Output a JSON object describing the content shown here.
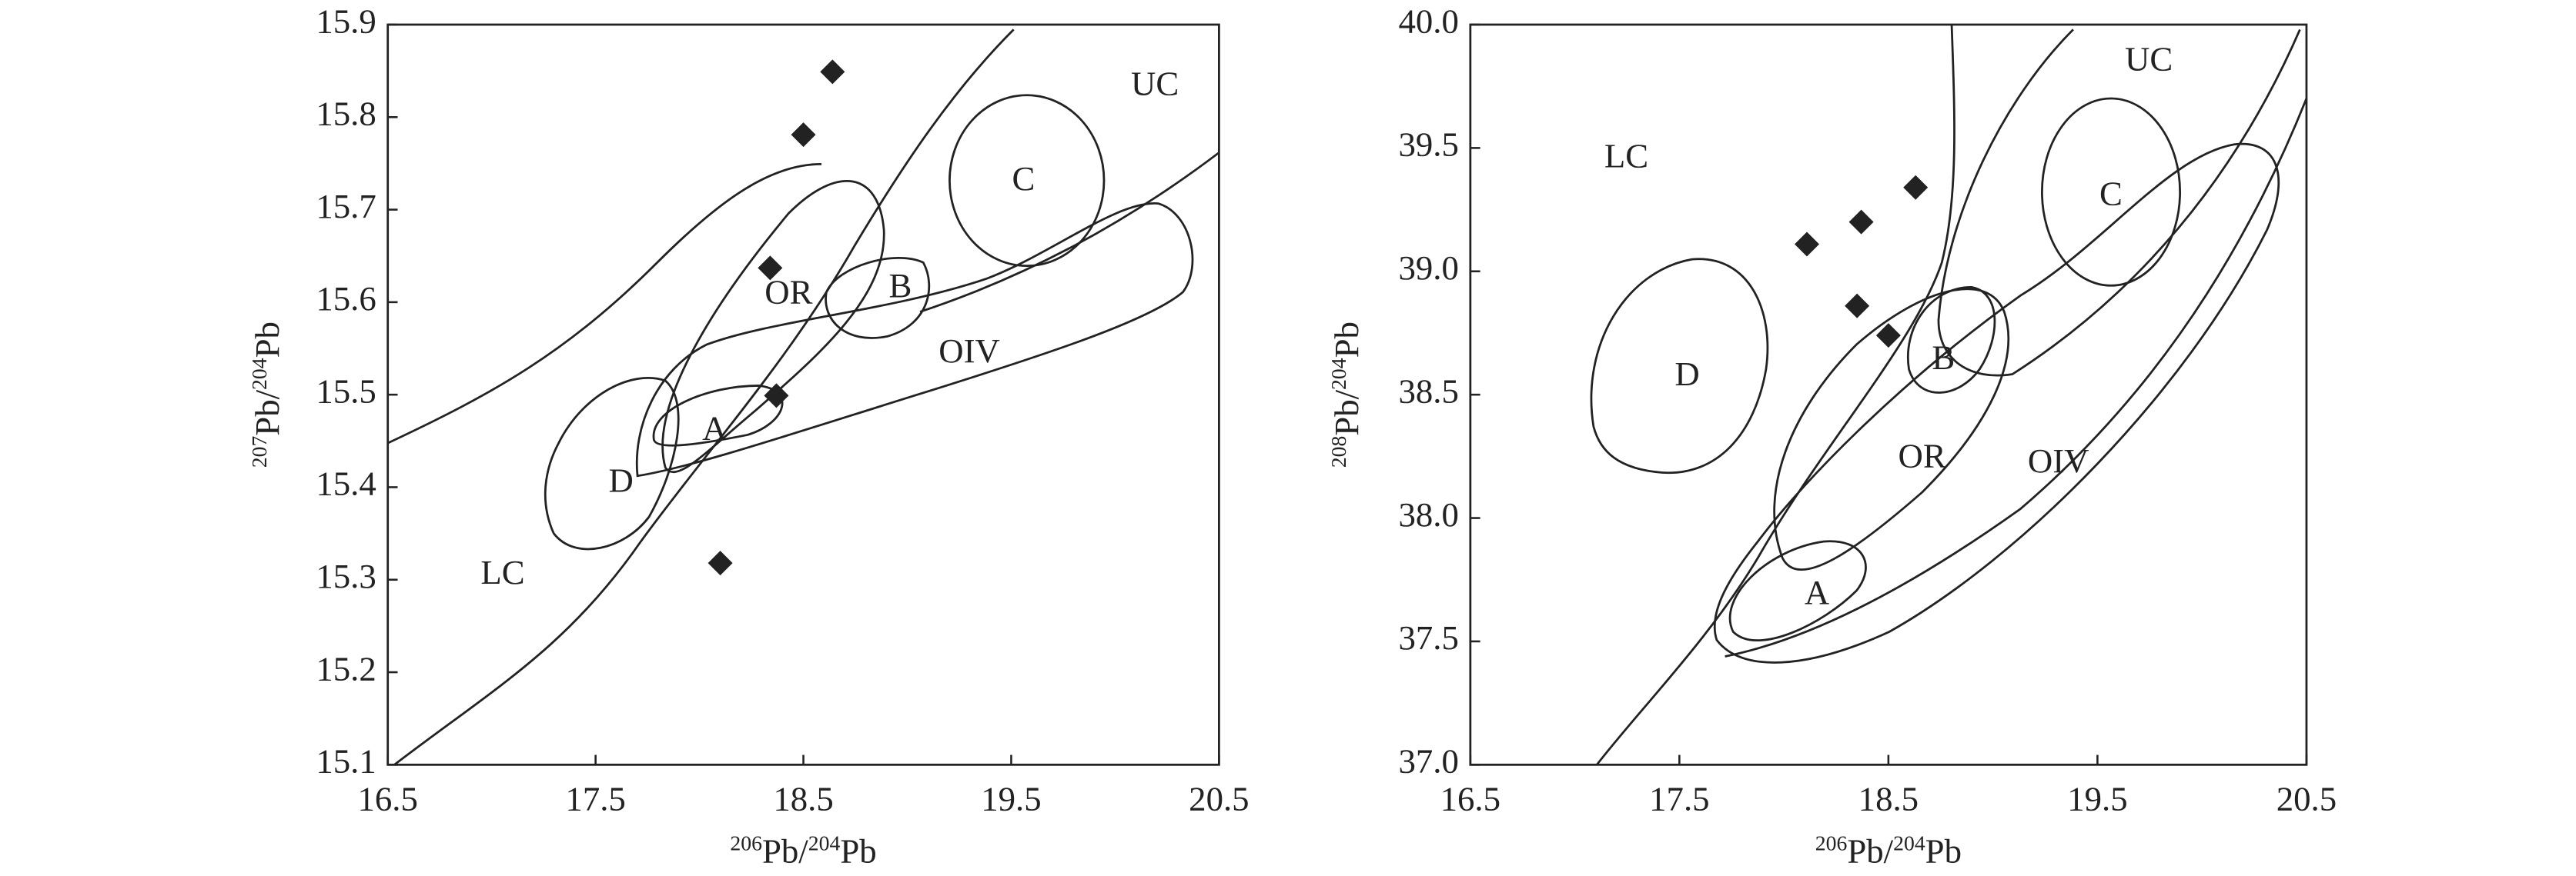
{
  "chart_data": [
    {
      "type": "scatter",
      "x_label": [
        "206",
        "Pb/",
        "204",
        "Pb"
      ],
      "y_label": [
        "207",
        "Pb/",
        "204",
        "Pb"
      ],
      "xlim": [
        16.5,
        20.5
      ],
      "xticks": [
        16.5,
        17.5,
        18.5,
        19.5,
        20.5
      ],
      "ylim": [
        15.1,
        15.9
      ],
      "yticks": [
        15.1,
        15.2,
        15.3,
        15.4,
        15.5,
        15.6,
        15.7,
        15.8,
        15.9
      ],
      "series": [
        {
          "color": "#222222",
          "x": [
            18.64,
            18.5,
            18.34,
            18.37,
            18.1
          ],
          "values": [
            15.849,
            15.781,
            15.637,
            15.499,
            15.318
          ]
        }
      ],
      "annotations": [
        "UC",
        "C",
        "OR",
        "B",
        "OIV",
        "A",
        "D",
        "LC"
      ]
    },
    {
      "type": "scatter",
      "x_label": [
        "206",
        "Pb/",
        "204",
        "Pb"
      ],
      "y_label": [
        "208",
        "Pb/",
        "204",
        "Pb"
      ],
      "xlim": [
        16.5,
        20.5
      ],
      "xticks": [
        16.5,
        17.5,
        18.5,
        19.5,
        20.5
      ],
      "ylim": [
        37.0,
        40.0
      ],
      "yticks": [
        {
          "value": 37,
          "label": "37.0"
        },
        37.5,
        {
          "value": 38,
          "label": "38.0"
        },
        38.5,
        {
          "value": 39,
          "label": "39.0"
        },
        39.5,
        {
          "value": 40,
          "label": "40.0"
        }
      ],
      "series": [
        {
          "color": "#222222",
          "x": [
            18.63,
            18.37,
            18.11,
            18.35,
            18.5
          ],
          "values": [
            39.34,
            39.2,
            39.11,
            38.86,
            38.74
          ]
        }
      ],
      "annotations": [
        "UC",
        "C",
        "B",
        "D",
        "OR",
        "OIV",
        "A",
        "LC"
      ]
    }
  ]
}
